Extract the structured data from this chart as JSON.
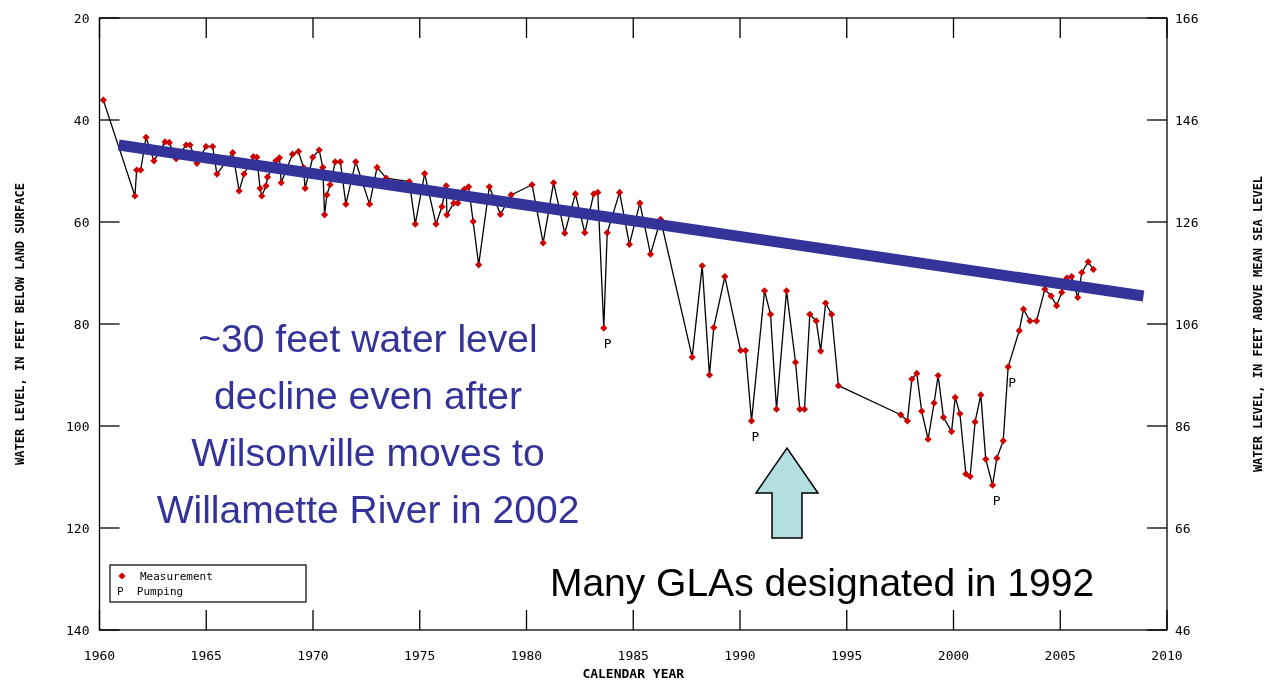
{
  "chart_data": {
    "type": "line",
    "xlabel": "CALENDAR YEAR",
    "ylabel": "WATER LEVEL, IN FEET BELOW LAND SURFACE",
    "y2label": "WATER LEVEL, IN FEET ABOVE MEAN SEA LEVEL",
    "xlim": [
      1960,
      2010
    ],
    "xticks": [
      1960,
      1965,
      1970,
      1975,
      1980,
      1985,
      1990,
      1995,
      2000,
      2005,
      2010
    ],
    "ylim": [
      140,
      20
    ],
    "yticks": [
      20,
      40,
      60,
      80,
      100,
      120,
      140
    ],
    "y2lim": [
      46,
      166
    ],
    "y2ticks": [
      166,
      146,
      126,
      106,
      86,
      66,
      46
    ],
    "legend": "bottom left",
    "grid": false,
    "annotations": [
      "~30 feet water level\ndecline even after\nWilsonville moves to\nWillamette River in 2002",
      "Many GLAs designated in 1992",
      "P  Pumping",
      {
        "text": "P",
        "x": 1983.62,
        "y": 80.8
      },
      {
        "text": "P",
        "x": 1990.54,
        "y": 99
      },
      {
        "text": "P",
        "x": 2001.83,
        "y": 111.6
      },
      {
        "text": "P",
        "x": 2002.56,
        "y": 88.4
      }
    ],
    "series": [
      {
        "name": "Measurement",
        "color": "#cc0000",
        "marker": "diamond",
        "x": [
          1960.18,
          1961.66,
          1961.74,
          1961.93,
          1962.18,
          1962.55,
          1963.07,
          1963.27,
          1963.59,
          1964.06,
          1964.24,
          1964.56,
          1964.99,
          1965.3,
          1965.5,
          1966.24,
          1966.54,
          1966.77,
          1967.21,
          1967.37,
          1967.52,
          1967.6,
          1967.8,
          1967.87,
          1968.26,
          1968.43,
          1968.51,
          1969.04,
          1969.32,
          1969.55,
          1969.63,
          1969.99,
          1970.29,
          1970.46,
          1970.54,
          1970.65,
          1970.8,
          1971.04,
          1971.28,
          1971.54,
          1972.0,
          1972.65,
          1973.0,
          1973.43,
          1974.51,
          1974.79,
          1975.23,
          1975.76,
          1976.04,
          1976.24,
          1976.27,
          1976.59,
          1976.78,
          1977.09,
          1977.29,
          1977.5,
          1977.76,
          1978.26,
          1978.78,
          1979.28,
          1980.26,
          1980.78,
          1981.27,
          1981.79,
          1982.29,
          1982.73,
          1983.15,
          1983.34,
          1983.62,
          1983.78,
          1984.36,
          1984.82,
          1985.31,
          1985.81,
          1986.28,
          1987.76,
          1988.23,
          1988.57,
          1988.77,
          1989.29,
          1990.03,
          1990.26,
          1990.54,
          1991.15,
          1991.43,
          1991.71,
          1992.18,
          1992.6,
          1992.8,
          1993.02,
          1993.27,
          1993.57,
          1993.78,
          1994.01,
          1994.29,
          1994.61,
          1997.53,
          1997.84,
          1998.05,
          1998.28,
          1998.51,
          1998.81,
          1999.09,
          1999.28,
          1999.53,
          1999.91,
          2000.08,
          2000.3,
          2000.58,
          2000.78,
          2001.01,
          2001.28,
          2001.51,
          2001.83,
          2002.03,
          2002.33,
          2002.56,
          2003.08,
          2003.28,
          2003.58,
          2003.89,
          2004.28,
          2004.57,
          2004.83,
          2005.07,
          2005.31,
          2005.53,
          2005.82,
          2006.01,
          2006.31,
          2006.55
        ],
        "values": [
          36.1,
          54.9,
          49.8,
          49.8,
          43.4,
          48,
          44.3,
          44.4,
          47.6,
          44.9,
          44.9,
          48.5,
          45.2,
          45.2,
          50.6,
          46.4,
          53.9,
          50.6,
          47.2,
          47.3,
          53.4,
          54.9,
          52.9,
          51.2,
          48,
          47.4,
          52.3,
          46.7,
          46.2,
          49.3,
          53.4,
          47.3,
          45.9,
          49.3,
          58.6,
          54.7,
          52.7,
          48.2,
          48.2,
          56.5,
          48.2,
          56.5,
          49.3,
          51.4,
          52.1,
          60.4,
          50.5,
          60.4,
          57,
          52.9,
          58.6,
          56.3,
          56.3,
          53.6,
          53.1,
          59.9,
          68.4,
          53.1,
          58.5,
          54.7,
          52.7,
          64.1,
          52.3,
          62.2,
          54.5,
          62.1,
          54.5,
          54.2,
          80.8,
          62.1,
          54.2,
          64.4,
          56.3,
          66.3,
          59.5,
          86.5,
          68.6,
          90,
          80.7,
          70.7,
          85.2,
          85.2,
          99,
          73.5,
          78.1,
          96.7,
          73.5,
          87.5,
          96.7,
          96.7,
          78.1,
          79.4,
          85.3,
          75.9,
          78.1,
          92.1,
          97.8,
          99,
          90.8,
          89.7,
          97.1,
          102.6,
          95.5,
          90.1,
          98.3,
          101.1,
          94.4,
          97.6,
          109.4,
          109.9,
          99.2,
          93.9,
          106.5,
          111.6,
          106.3,
          102.9,
          88.4,
          81.3,
          77.1,
          79.4,
          79.4,
          73.2,
          74.5,
          76.4,
          73.8,
          71,
          70.7,
          74.8,
          69.9,
          67.8,
          69.3
        ]
      },
      {
        "color": "#333399",
        "marker": "none",
        "x": [
          1960.9,
          2008.9
        ],
        "values": [
          44.9,
          74.5
        ]
      }
    ]
  }
}
